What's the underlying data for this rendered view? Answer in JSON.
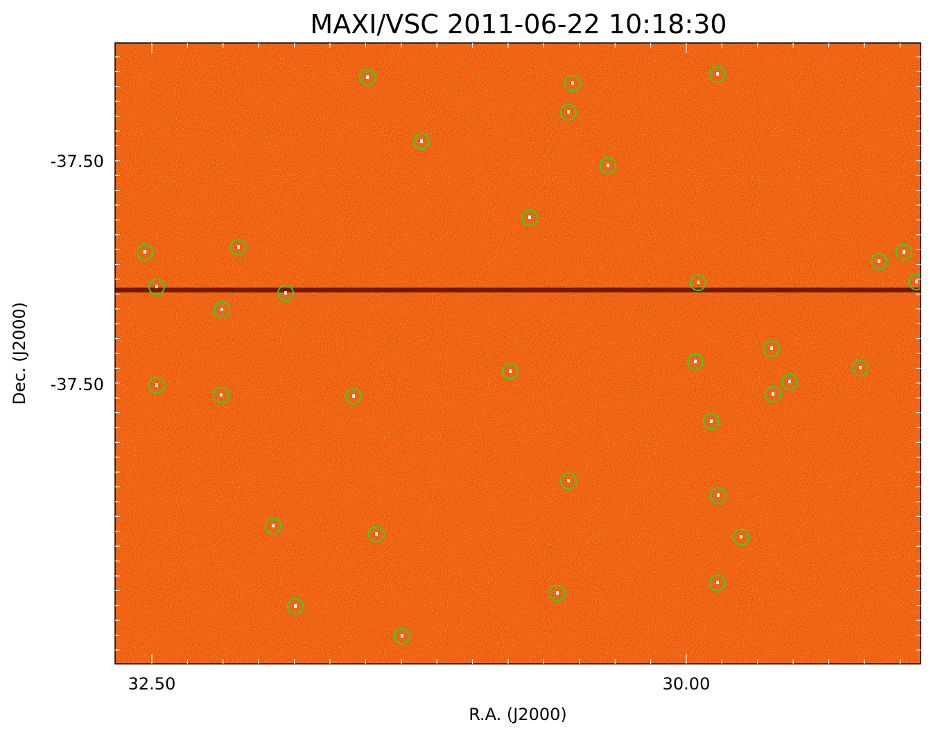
{
  "title": "MAXI/VSC 2011-06-22 10:18:30",
  "x_axis": {
    "label": "R.A. (J2000)",
    "tick_labels": [
      "32.50",
      "30.00"
    ]
  },
  "y_axis": {
    "label": "Dec. (J2000)",
    "tick_labels": [
      "-37.50",
      "-37.50"
    ]
  }
}
